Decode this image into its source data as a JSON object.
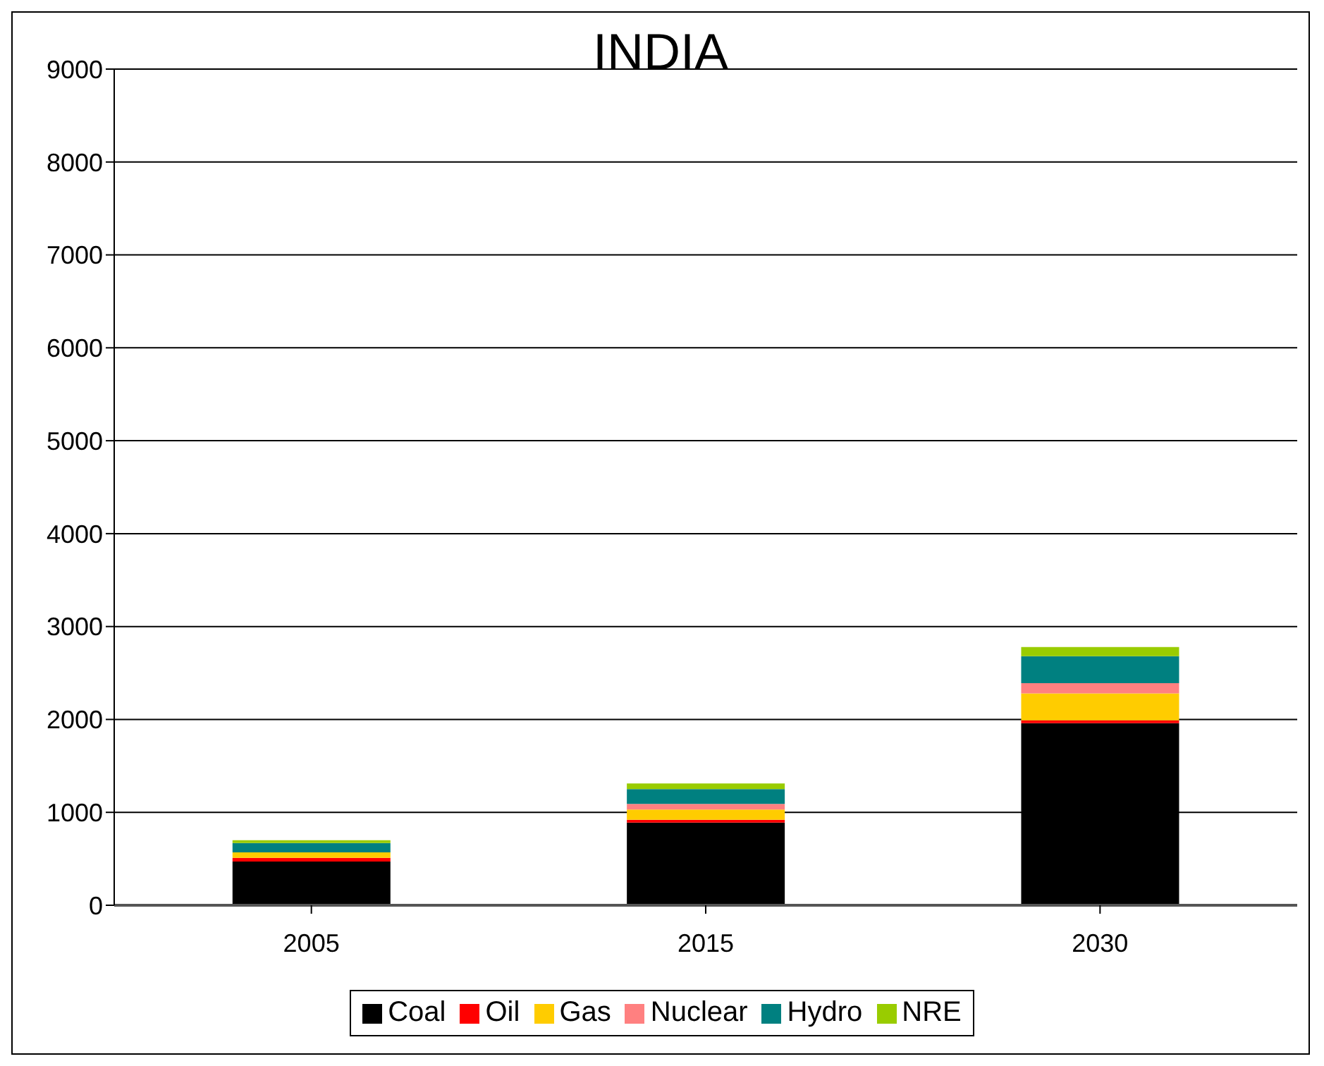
{
  "chart_data": {
    "type": "bar",
    "title": "INDIA",
    "categories": [
      "2005",
      "2015",
      "2030"
    ],
    "stacked": true,
    "ylim": [
      0,
      9000
    ],
    "yticks": [
      0,
      1000,
      2000,
      3000,
      4000,
      5000,
      6000,
      7000,
      8000,
      9000
    ],
    "grid": "y",
    "legend": "bottom",
    "series": [
      {
        "name": "Coal",
        "color": "#000000",
        "values": [
          470,
          890,
          1960
        ]
      },
      {
        "name": "Oil",
        "color": "#ff0000",
        "values": [
          40,
          30,
          30
        ]
      },
      {
        "name": "Gas",
        "color": "#ffcc00",
        "values": [
          60,
          110,
          290
        ]
      },
      {
        "name": "Nuclear",
        "color": "#ff8080",
        "values": [
          0,
          60,
          110
        ]
      },
      {
        "name": "Hydro",
        "color": "#008080",
        "values": [
          100,
          160,
          290
        ]
      },
      {
        "name": "NRE",
        "color": "#99cc00",
        "values": [
          30,
          60,
          100
        ]
      }
    ]
  }
}
